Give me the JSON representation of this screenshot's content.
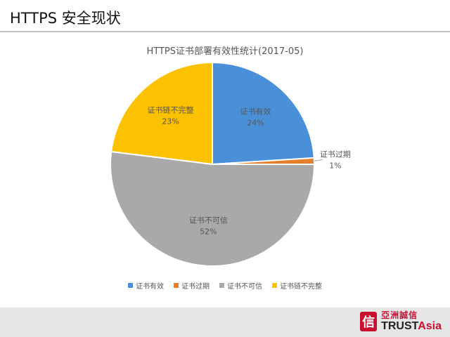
{
  "slide": {
    "title": "HTTPS 安全现状"
  },
  "chart_data": {
    "type": "pie",
    "title": "HTTPS证书部署有效性统计(2017-05)",
    "legend_position": "bottom",
    "slices": [
      {
        "label": "证书有效",
        "value": 24,
        "display": "24%",
        "color": "#4a90d9"
      },
      {
        "label": "证书过期",
        "value": 1,
        "display": "1%",
        "color": "#e87d2b"
      },
      {
        "label": "证书不可信",
        "value": 52,
        "display": "52%",
        "color": "#a9a9a9"
      },
      {
        "label": "证书链不完整",
        "value": 23,
        "display": "23%",
        "color": "#fcc100"
      }
    ]
  },
  "logo": {
    "cn": "亞洲誠信",
    "en_prefix": "TRUST",
    "en_suffix": "Asia",
    "mark": "信"
  }
}
